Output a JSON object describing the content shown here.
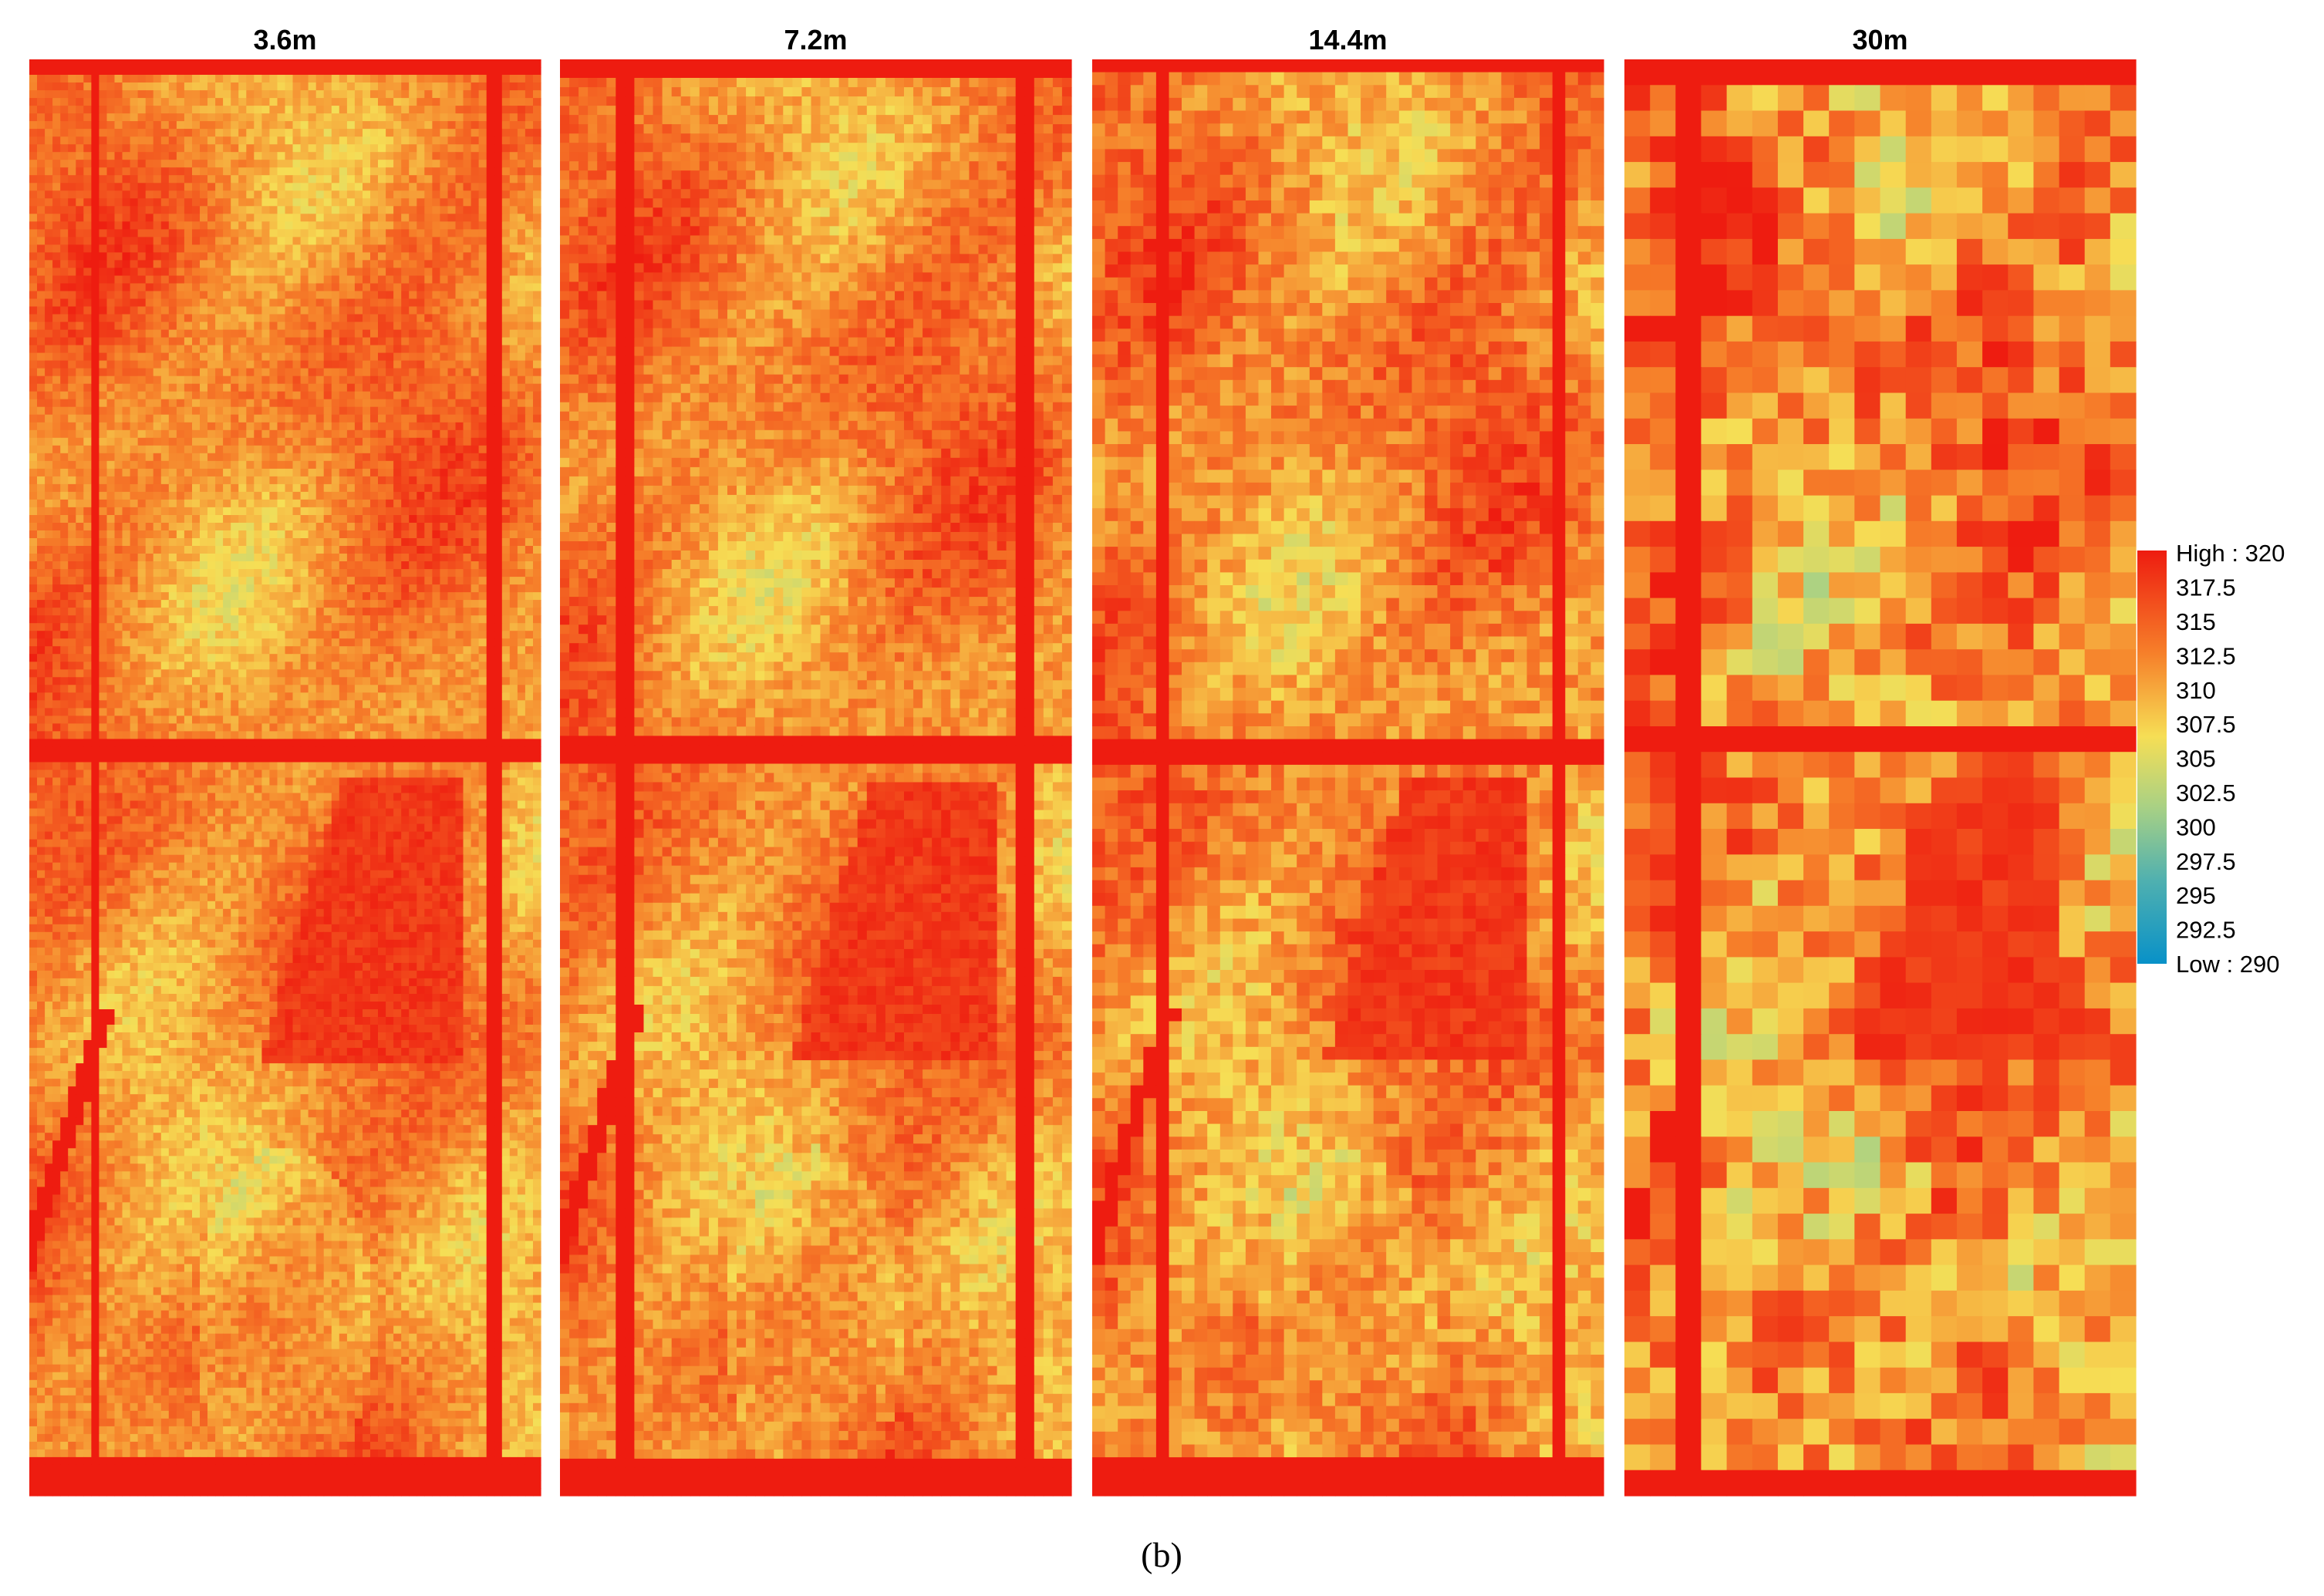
{
  "panels": [
    {
      "title": "3.6m"
    },
    {
      "title": "7.2m"
    },
    {
      "title": "14.4m"
    },
    {
      "title": "30m"
    }
  ],
  "legend": {
    "labels": [
      "High : 320",
      "317.5",
      "315",
      "312.5",
      "310",
      "307.5",
      "305",
      "302.5",
      "300",
      "297.5",
      "295",
      "292.5",
      "Low : 290"
    ]
  },
  "caption": "(b)"
}
